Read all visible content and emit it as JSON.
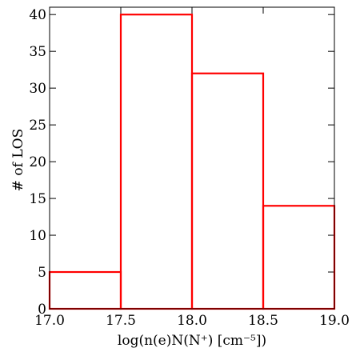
{
  "chart_data": {
    "type": "bar",
    "histogram": true,
    "bin_edges": [
      17.0,
      17.5,
      18.0,
      18.5,
      19.0
    ],
    "values": [
      5,
      40,
      32,
      14
    ],
    "color": "#ff0000",
    "xlim": [
      17.0,
      19.0
    ],
    "ylim": [
      0,
      41
    ],
    "xticks": [
      17.0,
      17.5,
      18.0,
      18.5,
      19.0
    ],
    "xtick_labels": [
      "17.0",
      "17.5",
      "18.0",
      "18.5",
      "19.0"
    ],
    "yticks": [
      0,
      5,
      10,
      15,
      20,
      25,
      30,
      35,
      40
    ],
    "ytick_labels": [
      "0",
      "5",
      "10",
      "15",
      "20",
      "25",
      "30",
      "35",
      "40"
    ],
    "xlabel": "log(n(e)N(N⁺) [cm⁻⁵])",
    "ylabel": "# of LOS",
    "grid": false
  }
}
